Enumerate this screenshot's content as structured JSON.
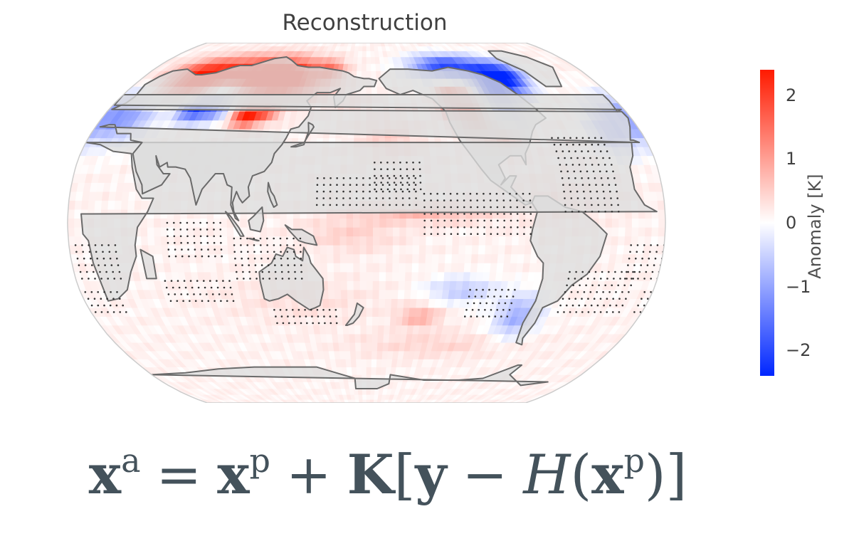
{
  "title": "Reconstruction",
  "colorbar": {
    "label": "Anomaly [K]",
    "ticks": [
      "2",
      "1",
      "0",
      "−1",
      "−2"
    ],
    "tick_values": [
      2,
      1,
      0,
      -1,
      -2
    ],
    "range": [
      -2.4,
      2.4
    ],
    "colors": {
      "neg": "#0026ff",
      "zero": "#ffffff",
      "pos": "#ff1a00"
    }
  },
  "colors": {
    "land": "#dcdcdc",
    "coast": "#6a6a6a",
    "stipple": "#333333",
    "map_border": "#cccccc"
  },
  "formula": {
    "xa_base": "x",
    "xa_sup": "a",
    "eq": "=",
    "xp_base": "x",
    "xp_sup": "p",
    "plus": "+",
    "K": "K",
    "lbracket": "[",
    "y": "y",
    "minus": "−",
    "H": "H",
    "lparen": "(",
    "xp2_base": "x",
    "xp2_sup": "p",
    "rparen": ")",
    "rbracket": "]"
  },
  "map": {
    "projection": "robinson",
    "central_longitude": 180,
    "anomaly_blobs": [
      {
        "lon": 90,
        "lat": 68,
        "rlon": 40,
        "rlat": 10,
        "v": 2.3
      },
      {
        "lon": 45,
        "lat": 66,
        "rlon": 25,
        "rlat": 9,
        "v": 2.0
      },
      {
        "lon": 120,
        "lat": 65,
        "rlon": 25,
        "rlat": 10,
        "v": 1.5
      },
      {
        "lon": 150,
        "lat": 70,
        "rlon": 12,
        "rlat": 6,
        "v": 1.1
      },
      {
        "lon": 72,
        "lat": 55,
        "rlon": 14,
        "rlat": 8,
        "v": -2.2
      },
      {
        "lon": 58,
        "lat": 52,
        "rlon": 10,
        "rlat": 6,
        "v": -1.8
      },
      {
        "lon": 98,
        "lat": 48,
        "rlon": 10,
        "rlat": 5,
        "v": 2.2
      },
      {
        "lon": 112,
        "lat": 50,
        "rlon": 8,
        "rlat": 4,
        "v": 1.2
      },
      {
        "lon": 10,
        "lat": 48,
        "rlon": 25,
        "rlat": 12,
        "v": -1.3
      },
      {
        "lon": 340,
        "lat": 40,
        "rlon": 14,
        "rlat": 10,
        "v": -0.8
      },
      {
        "lon": 250,
        "lat": 72,
        "rlon": 30,
        "rlat": 7,
        "v": -2.2
      },
      {
        "lon": 278,
        "lat": 60,
        "rlon": 14,
        "rlat": 12,
        "v": -2.4
      },
      {
        "lon": 295,
        "lat": 67,
        "rlon": 14,
        "rlat": 8,
        "v": -2.0
      },
      {
        "lon": 253,
        "lat": 50,
        "rlon": 10,
        "rlat": 10,
        "v": 2.3
      },
      {
        "lon": 240,
        "lat": 55,
        "rlon": 8,
        "rlat": 8,
        "v": 1.6
      },
      {
        "lon": 270,
        "lat": 38,
        "rlon": 10,
        "rlat": 6,
        "v": 1.0
      },
      {
        "lon": 195,
        "lat": 38,
        "rlon": 20,
        "rlat": 8,
        "v": 0.4
      },
      {
        "lon": 215,
        "lat": 4,
        "rlon": 40,
        "rlat": 4,
        "v": 0.6
      },
      {
        "lon": 170,
        "lat": -5,
        "rlon": 30,
        "rlat": 8,
        "v": 0.35
      },
      {
        "lon": 280,
        "lat": -42,
        "rlon": 15,
        "rlat": 10,
        "v": -1.0
      },
      {
        "lon": 240,
        "lat": -30,
        "rlon": 22,
        "rlat": 6,
        "v": -0.7
      },
      {
        "lon": 215,
        "lat": -42,
        "rlon": 14,
        "rlat": 5,
        "v": 0.7
      },
      {
        "lon": 140,
        "lat": -35,
        "rlon": 50,
        "rlat": 10,
        "v": 0.2
      },
      {
        "lon": 230,
        "lat": -55,
        "rlon": 60,
        "rlat": 6,
        "v": 0.3
      },
      {
        "lon": 300,
        "lat": 10,
        "rlon": 30,
        "rlat": 12,
        "v": 0.2
      },
      {
        "lon": 170,
        "lat": 55,
        "rlon": 15,
        "rlat": 5,
        "v": 0.2
      }
    ],
    "land": [
      [
        [
          190,
          66
        ],
        [
          200,
          71
        ],
        [
          215,
          71
        ],
        [
          235,
          70
        ],
        [
          250,
          72
        ],
        [
          265,
          70
        ],
        [
          275,
          68
        ],
        [
          285,
          64
        ],
        [
          292,
          58
        ],
        [
          298,
          52
        ],
        [
          302,
          47
        ],
        [
          293,
          44
        ],
        [
          289,
          41
        ],
        [
          284,
          35
        ],
        [
          280,
          31
        ],
        [
          279,
          26
        ],
        [
          277,
          30
        ],
        [
          270,
          30
        ],
        [
          262,
          26
        ],
        [
          265,
          20
        ],
        [
          262,
          17
        ],
        [
          268,
          21
        ],
        [
          272,
          21
        ],
        [
          268,
          16
        ],
        [
          275,
          10
        ],
        [
          280,
          9
        ],
        [
          276,
          8
        ],
        [
          256,
          19
        ],
        [
          251,
          24
        ],
        [
          245,
          31
        ],
        [
          240,
          37
        ],
        [
          236,
          45
        ],
        [
          235,
          50
        ],
        [
          228,
          56
        ],
        [
          215,
          60
        ],
        [
          205,
          58
        ],
        [
          195,
          61
        ],
        [
          192,
          64
        ]
      ],
      [
        [
          302,
          82
        ],
        [
          315,
          82
        ],
        [
          330,
          78
        ],
        [
          340,
          72
        ],
        [
          330,
          62
        ],
        [
          318,
          62
        ],
        [
          312,
          70
        ],
        [
          300,
          77
        ]
      ],
      [
        [
          280,
          9
        ],
        [
          282,
          12
        ],
        [
          290,
          12
        ],
        [
          300,
          7
        ],
        [
          310,
          5
        ],
        [
          318,
          0
        ],
        [
          325,
          -5
        ],
        [
          322,
          -15
        ],
        [
          316,
          -23
        ],
        [
          308,
          -28
        ],
        [
          302,
          -35
        ],
        [
          294,
          -38
        ],
        [
          293,
          -45
        ],
        [
          290,
          -52
        ],
        [
          292,
          -55
        ],
        [
          287,
          -54
        ],
        [
          285,
          -45
        ],
        [
          288,
          -35
        ],
        [
          289,
          -25
        ],
        [
          288,
          -18
        ],
        [
          284,
          -15
        ],
        [
          279,
          -8
        ],
        [
          280,
          -3
        ],
        [
          283,
          5
        ]
      ],
      [
        [
          15,
          -35
        ],
        [
          22,
          -34
        ],
        [
          30,
          -30
        ],
        [
          35,
          -22
        ],
        [
          40,
          -15
        ],
        [
          40,
          -10
        ],
        [
          42,
          -2
        ],
        [
          48,
          5
        ],
        [
          51,
          11
        ],
        [
          44,
          11
        ],
        [
          40,
          15
        ],
        [
          35,
          25
        ],
        [
          32,
          31
        ],
        [
          20,
          32
        ],
        [
          10,
          35
        ],
        [
          0,
          36
        ],
        [
          350,
          36
        ],
        [
          347,
          30
        ],
        [
          343,
          25
        ],
        [
          343,
          20
        ],
        [
          343,
          15
        ],
        [
          348,
          8
        ],
        [
          355,
          5
        ],
        [
          8,
          4
        ],
        [
          9,
          -5
        ],
        [
          12,
          -8
        ],
        [
          13,
          -18
        ],
        [
          15,
          -28
        ]
      ],
      [
        [
          350,
          37
        ],
        [
          355,
          43
        ],
        [
          358,
          47
        ],
        [
          357,
          50
        ],
        [
          2,
          51
        ],
        [
          8,
          54
        ],
        [
          10,
          57
        ],
        [
          8,
          63
        ],
        [
          12,
          67
        ],
        [
          18,
          70
        ],
        [
          28,
          71
        ],
        [
          40,
          68
        ],
        [
          45,
          68
        ],
        [
          55,
          69
        ],
        [
          65,
          72
        ],
        [
          70,
          73
        ],
        [
          80,
          73
        ],
        [
          88,
          75
        ],
        [
          95,
          77
        ],
        [
          105,
          78
        ],
        [
          112,
          76
        ],
        [
          120,
          73
        ],
        [
          130,
          72
        ],
        [
          140,
          72
        ],
        [
          150,
          71
        ],
        [
          160,
          70
        ],
        [
          165,
          69
        ],
        [
          170,
          67
        ],
        [
          178,
          66
        ],
        [
          182,
          66
        ],
        [
          188,
          65
        ],
        [
          186,
          62
        ],
        [
          178,
          62
        ],
        [
          175,
          60
        ],
        [
          165,
          58
        ],
        [
          163,
          55
        ],
        [
          158,
          52
        ],
        [
          156,
          57
        ],
        [
          160,
          61
        ],
        [
          153,
          59
        ],
        [
          143,
          59
        ],
        [
          137,
          55
        ],
        [
          141,
          52
        ],
        [
          140,
          48
        ],
        [
          135,
          43
        ],
        [
          130,
          42
        ],
        [
          128,
          38
        ],
        [
          126,
          35
        ],
        [
          122,
          31
        ],
        [
          121,
          27
        ],
        [
          117,
          23
        ],
        [
          110,
          21
        ],
        [
          108,
          16
        ],
        [
          109,
          12
        ],
        [
          105,
          9
        ],
        [
          103,
          11
        ],
        [
          101,
          14
        ],
        [
          99,
          9
        ],
        [
          100,
          5
        ],
        [
          103,
          1
        ],
        [
          101,
          2
        ],
        [
          98,
          8
        ],
        [
          98,
          16
        ],
        [
          95,
          17
        ],
        [
          92,
          22
        ],
        [
          87,
          22
        ],
        [
          80,
          15
        ],
        [
          77,
          8
        ],
        [
          72,
          20
        ],
        [
          68,
          24
        ],
        [
          62,
          25
        ],
        [
          57,
          25
        ],
        [
          56,
          27
        ],
        [
          52,
          25
        ],
        [
          48,
          30
        ],
        [
          50,
          26
        ],
        [
          55,
          22
        ],
        [
          59,
          22
        ],
        [
          55,
          17
        ],
        [
          44,
          13
        ],
        [
          43,
          17
        ],
        [
          38,
          23
        ],
        [
          35,
          28
        ],
        [
          33,
          31
        ],
        [
          36,
          36
        ],
        [
          28,
          37
        ],
        [
          26,
          40
        ],
        [
          20,
          40
        ],
        [
          17,
          40
        ],
        [
          12,
          44
        ],
        [
          8,
          44
        ],
        [
          3,
          43
        ],
        [
          355,
          36
        ],
        [
          352,
          37
        ]
      ],
      [
        [
          114,
          -22
        ],
        [
          114,
          -26
        ],
        [
          115,
          -34
        ],
        [
          118,
          -35
        ],
        [
          124,
          -34
        ],
        [
          130,
          -32
        ],
        [
          135,
          -35
        ],
        [
          139,
          -37
        ],
        [
          143,
          -39
        ],
        [
          147,
          -38
        ],
        [
          150,
          -37
        ],
        [
          153,
          -30
        ],
        [
          153,
          -25
        ],
        [
          149,
          -21
        ],
        [
          146,
          -18
        ],
        [
          145,
          -15
        ],
        [
          142,
          -11
        ],
        [
          141,
          -17
        ],
        [
          137,
          -15
        ],
        [
          136,
          -12
        ],
        [
          132,
          -11
        ],
        [
          129,
          -15
        ],
        [
          125,
          -14
        ],
        [
          122,
          -18
        ]
      ],
      [
        [
          132,
          34
        ],
        [
          135,
          34
        ],
        [
          140,
          35
        ],
        [
          141,
          38
        ],
        [
          142,
          41
        ],
        [
          141,
          45
        ],
        [
          144,
          44
        ],
        [
          145,
          43
        ],
        [
          142,
          39
        ],
        [
          140,
          36
        ]
      ],
      [
        [
          95,
          5
        ],
        [
          98,
          3
        ],
        [
          103,
          -2
        ],
        [
          106,
          -6
        ],
        [
          104,
          -6
        ],
        [
          100,
          -1
        ]
      ],
      [
        [
          109,
          -7
        ],
        [
          114,
          -8
        ],
        [
          115,
          -8
        ],
        [
          110,
          -7
        ]
      ],
      [
        [
          109,
          1
        ],
        [
          110,
          -3
        ],
        [
          116,
          -4
        ],
        [
          118,
          1
        ],
        [
          117,
          7
        ],
        [
          112,
          3
        ]
      ],
      [
        [
          131,
          -1
        ],
        [
          135,
          -3
        ],
        [
          141,
          -3
        ],
        [
          148,
          -6
        ],
        [
          150,
          -10
        ],
        [
          143,
          -9
        ],
        [
          139,
          -8
        ],
        [
          134,
          -4
        ]
      ],
      [
        [
          120,
          18
        ],
        [
          122,
          14
        ],
        [
          124,
          12
        ],
        [
          126,
          8
        ],
        [
          124,
          7
        ],
        [
          122,
          10
        ],
        [
          120,
          14
        ]
      ],
      [
        [
          43,
          -12
        ],
        [
          50,
          -15
        ],
        [
          50,
          -25
        ],
        [
          44,
          -25
        ]
      ],
      [
        [
          166,
          -46
        ],
        [
          172,
          -41
        ],
        [
          174,
          -36
        ],
        [
          178,
          -38
        ],
        [
          175,
          -42
        ],
        [
          171,
          -45
        ],
        [
          167,
          -46
        ]
      ],
      [
        [
          354,
          50
        ],
        [
          358,
          51
        ],
        [
          1,
          53
        ],
        [
          0,
          58
        ],
        [
          355,
          58
        ],
        [
          355,
          55
        ]
      ],
      [
        [
          200,
          -70
        ],
        [
          230,
          -73
        ],
        [
          260,
          -73
        ],
        [
          280,
          -72
        ],
        [
          300,
          -65
        ],
        [
          303,
          -65
        ],
        [
          300,
          -70
        ],
        [
          320,
          -76
        ],
        [
          340,
          -74
        ],
        [
          0,
          -70
        ],
        [
          30,
          -69
        ],
        [
          60,
          -67
        ],
        [
          90,
          -66
        ],
        [
          120,
          -66
        ],
        [
          140,
          -66
        ],
        [
          160,
          -70
        ],
        [
          170,
          -72
        ],
        [
          170,
          -78
        ],
        [
          180,
          -78
        ],
        [
          190,
          -78
        ],
        [
          200,
          -75
        ]
      ]
    ],
    "stipple_regions": [
      [
        215,
        280,
        -5,
        15
      ],
      [
        150,
        210,
        8,
        20
      ],
      [
        100,
        140,
        -25,
        -5
      ],
      [
        60,
        95,
        -15,
        0
      ],
      [
        340,
        30,
        -25,
        -10
      ],
      [
        300,
        335,
        5,
        40
      ],
      [
        305,
        345,
        -40,
        -20
      ],
      [
        185,
        215,
        15,
        28
      ],
      [
        245,
        275,
        -42,
        -30
      ],
      [
        120,
        160,
        -45,
        -38
      ],
      [
        55,
        95,
        -35,
        -25
      ],
      [
        355,
        25,
        -40,
        -30
      ]
    ]
  }
}
